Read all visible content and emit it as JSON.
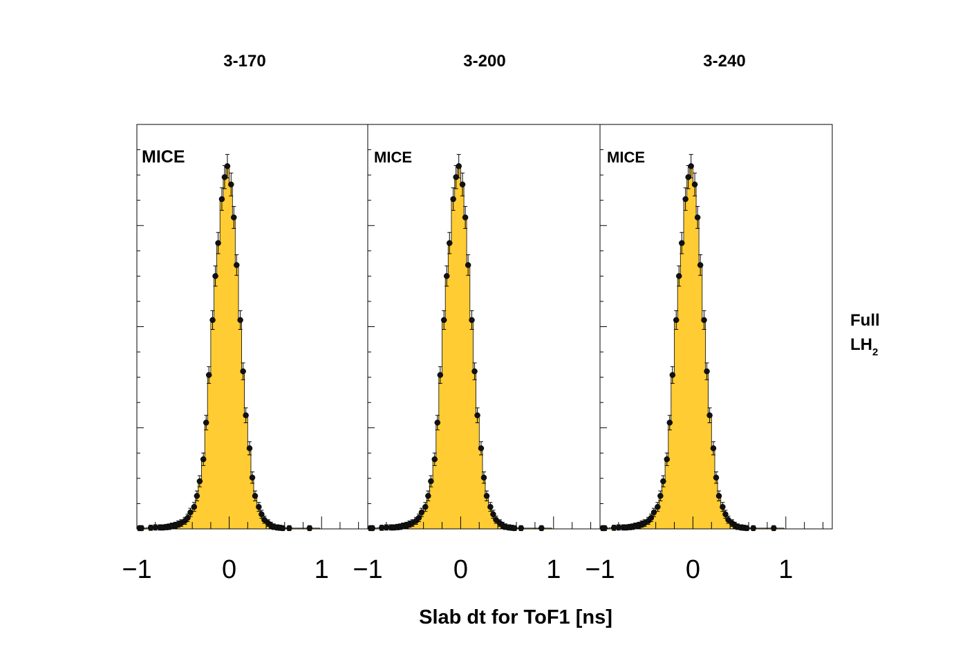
{
  "chart_data": {
    "type": "bar",
    "x_axis_label": "Slab dt for ToF1 [ns]",
    "x_range": [
      -1.0,
      1.5
    ],
    "x_tick_labels": [
      "−1",
      "0",
      "1"
    ],
    "x_tick_values": [
      -1,
      0,
      1
    ],
    "histogram_fill": "#ffcc33",
    "row_label": {
      "line1": "Full",
      "line2_main": "LH",
      "line2_sub": "2"
    },
    "panels": [
      {
        "title": "3-170",
        "watermark": "MICE",
        "x": [
          -0.97,
          -0.95,
          -0.85,
          -0.8,
          -0.75,
          -0.72,
          -0.68,
          -0.65,
          -0.62,
          -0.58,
          -0.55,
          -0.52,
          -0.48,
          -0.45,
          -0.42,
          -0.38,
          -0.35,
          -0.32,
          -0.28,
          -0.25,
          -0.22,
          -0.18,
          -0.15,
          -0.12,
          -0.08,
          -0.05,
          -0.02,
          0.02,
          0.05,
          0.08,
          0.12,
          0.15,
          0.18,
          0.22,
          0.25,
          0.28,
          0.32,
          0.35,
          0.38,
          0.42,
          0.45,
          0.48,
          0.52,
          0.55,
          0.58,
          0.65,
          0.87
        ],
        "y": [
          0.002,
          0.002,
          0.003,
          0.004,
          0.004,
          0.004,
          0.005,
          0.006,
          0.008,
          0.01,
          0.013,
          0.016,
          0.022,
          0.03,
          0.045,
          0.06,
          0.09,
          0.13,
          0.19,
          0.29,
          0.42,
          0.57,
          0.69,
          0.78,
          0.9,
          0.96,
          0.99,
          0.94,
          0.85,
          0.72,
          0.57,
          0.43,
          0.31,
          0.22,
          0.14,
          0.09,
          0.06,
          0.04,
          0.025,
          0.016,
          0.01,
          0.006,
          0.004,
          0.003,
          0.002,
          0.002,
          0.002
        ]
      },
      {
        "title": "3-200",
        "watermark": "MICE",
        "x": [
          -0.97,
          -0.95,
          -0.85,
          -0.8,
          -0.75,
          -0.72,
          -0.68,
          -0.65,
          -0.62,
          -0.58,
          -0.55,
          -0.52,
          -0.48,
          -0.45,
          -0.42,
          -0.38,
          -0.35,
          -0.32,
          -0.28,
          -0.25,
          -0.22,
          -0.18,
          -0.15,
          -0.12,
          -0.08,
          -0.05,
          -0.02,
          0.02,
          0.05,
          0.08,
          0.12,
          0.15,
          0.18,
          0.22,
          0.25,
          0.28,
          0.32,
          0.35,
          0.38,
          0.42,
          0.45,
          0.48,
          0.52,
          0.55,
          0.58,
          0.65,
          0.87
        ],
        "y": [
          0.002,
          0.002,
          0.003,
          0.004,
          0.004,
          0.004,
          0.005,
          0.006,
          0.008,
          0.01,
          0.013,
          0.016,
          0.022,
          0.03,
          0.045,
          0.06,
          0.09,
          0.13,
          0.19,
          0.29,
          0.42,
          0.57,
          0.69,
          0.78,
          0.9,
          0.96,
          0.99,
          0.94,
          0.85,
          0.72,
          0.57,
          0.43,
          0.31,
          0.22,
          0.14,
          0.09,
          0.06,
          0.04,
          0.025,
          0.016,
          0.01,
          0.006,
          0.004,
          0.003,
          0.002,
          0.002,
          0.002
        ]
      },
      {
        "title": "3-240",
        "watermark": "MICE",
        "x": [
          -0.97,
          -0.95,
          -0.85,
          -0.8,
          -0.75,
          -0.72,
          -0.68,
          -0.65,
          -0.62,
          -0.58,
          -0.55,
          -0.52,
          -0.48,
          -0.45,
          -0.42,
          -0.38,
          -0.35,
          -0.32,
          -0.28,
          -0.25,
          -0.22,
          -0.18,
          -0.15,
          -0.12,
          -0.08,
          -0.05,
          -0.02,
          0.02,
          0.05,
          0.08,
          0.12,
          0.15,
          0.18,
          0.22,
          0.25,
          0.28,
          0.32,
          0.35,
          0.38,
          0.42,
          0.45,
          0.48,
          0.52,
          0.55,
          0.58,
          0.65,
          0.87
        ],
        "y": [
          0.002,
          0.002,
          0.003,
          0.004,
          0.004,
          0.004,
          0.005,
          0.006,
          0.008,
          0.01,
          0.013,
          0.016,
          0.022,
          0.03,
          0.045,
          0.06,
          0.09,
          0.13,
          0.19,
          0.29,
          0.42,
          0.57,
          0.69,
          0.78,
          0.9,
          0.96,
          0.99,
          0.94,
          0.85,
          0.72,
          0.57,
          0.43,
          0.31,
          0.22,
          0.14,
          0.09,
          0.06,
          0.04,
          0.025,
          0.016,
          0.01,
          0.006,
          0.004,
          0.003,
          0.002,
          0.002,
          0.002
        ]
      }
    ]
  }
}
